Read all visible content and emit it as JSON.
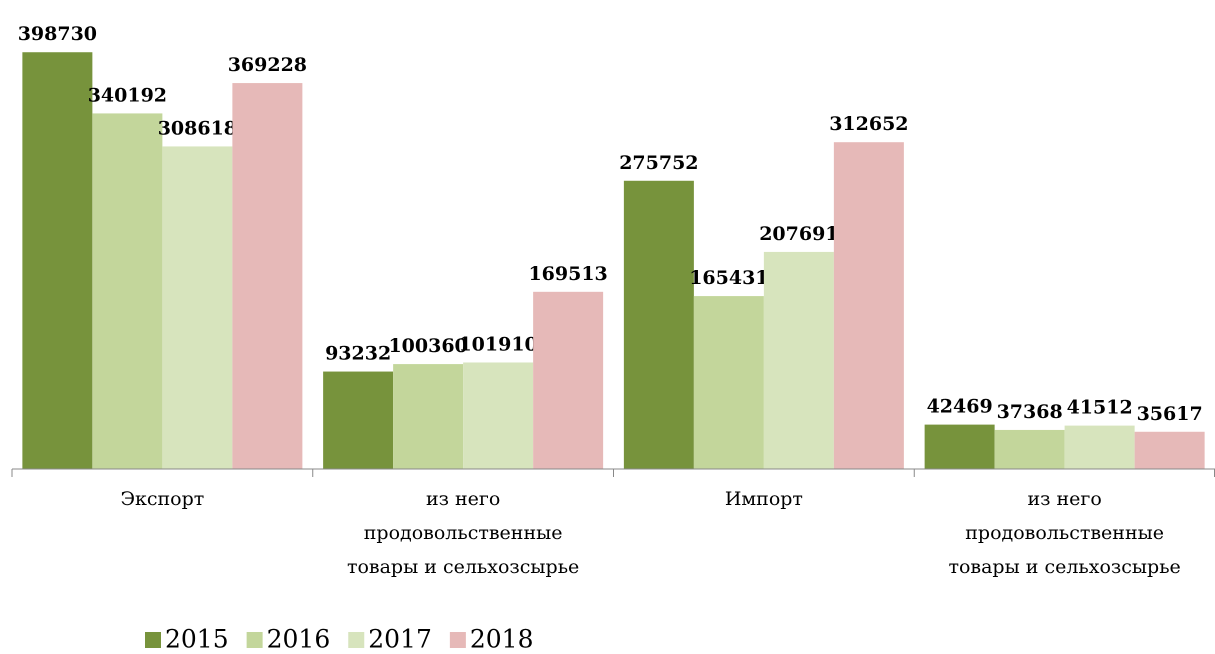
{
  "chart_data": {
    "type": "bar",
    "categories": [
      "Экспорт",
      "из него\nпродовольственные\nтовары и сельхозсырье",
      "Импорт",
      "из него\nпродовольственные\nтовары и сельхозсырье"
    ],
    "series": [
      {
        "name": "2015",
        "color": "#77933c",
        "values": [
          398730,
          93232,
          275752,
          42469
        ]
      },
      {
        "name": "2016",
        "color": "#c3d69b",
        "values": [
          340192,
          100360,
          165431,
          37368
        ]
      },
      {
        "name": "2017",
        "color": "#d7e4bd",
        "values": [
          308618,
          101910,
          207691,
          41512
        ]
      },
      {
        "name": "2018",
        "color": "#e6b9b8",
        "values": [
          369228,
          169513,
          312652,
          35617
        ]
      }
    ],
    "ylim": [
      0,
      420000
    ]
  }
}
